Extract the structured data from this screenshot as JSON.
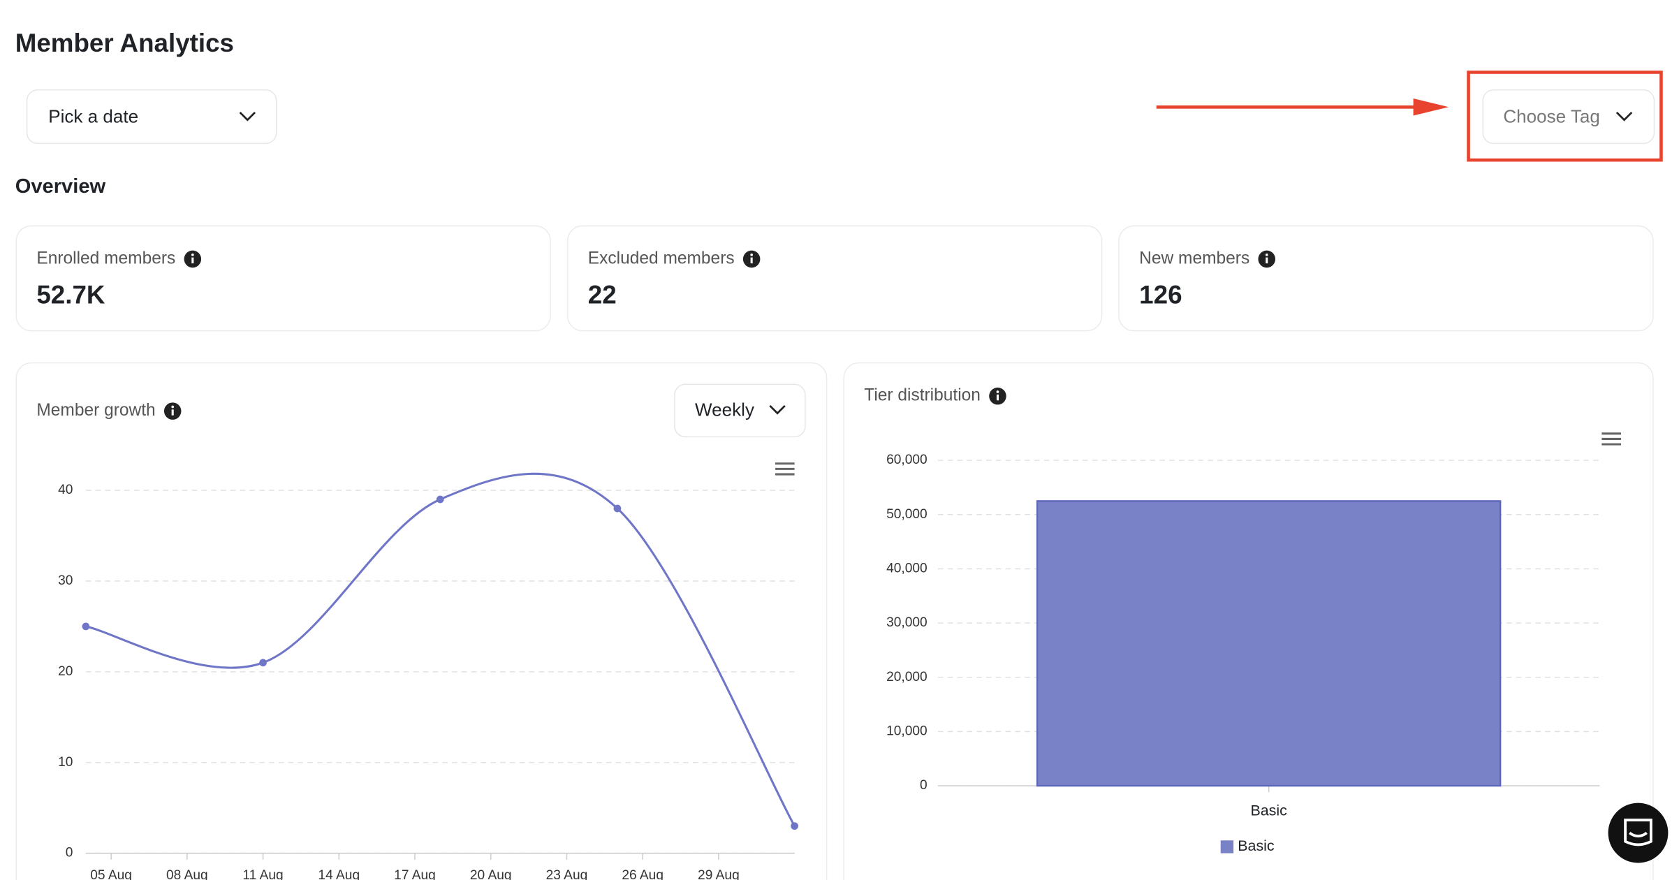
{
  "header": {
    "title": "Member Analytics"
  },
  "filters": {
    "date_picker": "Pick a date",
    "tag_picker": "Choose Tag"
  },
  "overview": {
    "title": "Overview",
    "cards": [
      {
        "label": "Enrolled members",
        "value": "52.7K"
      },
      {
        "label": "Excluded members",
        "value": "22"
      },
      {
        "label": "New members",
        "value": "126"
      }
    ]
  },
  "chart_data": [
    {
      "type": "line",
      "title": "Member growth",
      "period": "Weekly",
      "x": [
        4,
        11,
        18,
        25,
        32
      ],
      "values": [
        25,
        21,
        39,
        38,
        3
      ],
      "color": "#6f76c8",
      "xlim": [
        4,
        32
      ],
      "xticks": [
        {
          "value": 5,
          "label": "05 Aug"
        },
        {
          "value": 8,
          "label": "08 Aug"
        },
        {
          "value": 11,
          "label": "11 Aug"
        },
        {
          "value": 14,
          "label": "14 Aug"
        },
        {
          "value": 17,
          "label": "17 Aug"
        },
        {
          "value": 20,
          "label": "20 Aug"
        },
        {
          "value": 23,
          "label": "23 Aug"
        },
        {
          "value": 26,
          "label": "26 Aug"
        },
        {
          "value": 29,
          "label": "29 Aug"
        }
      ],
      "ylim": [
        0,
        40
      ],
      "yticks": [
        0,
        10,
        20,
        30,
        40
      ],
      "grid": true
    },
    {
      "type": "bar",
      "title": "Tier distribution",
      "categories": [
        "Basic"
      ],
      "series": [
        {
          "name": "Basic",
          "color": "#7a82c7",
          "values": [
            52500
          ]
        }
      ],
      "ylim": [
        0,
        60000
      ],
      "yticks": [
        0,
        {
          "value": 10000,
          "label": "10,000"
        },
        {
          "value": 20000,
          "label": "20,000"
        },
        {
          "value": 30000,
          "label": "30,000"
        },
        {
          "value": 40000,
          "label": "40,000"
        },
        {
          "value": 50000,
          "label": "50,000"
        },
        {
          "value": 60000,
          "label": "60,000"
        }
      ],
      "grid": true,
      "legend": "bottom"
    }
  ]
}
